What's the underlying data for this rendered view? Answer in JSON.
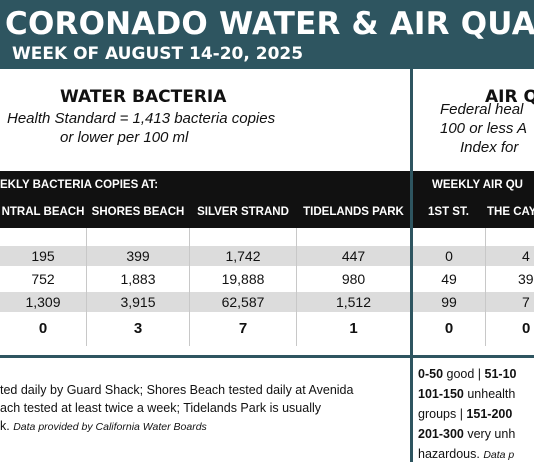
{
  "banner": {
    "title": "CORONADO WATER & AIR QUALITY R",
    "subtitle": "WEEK OF AUGUST 14-20, 2025"
  },
  "water": {
    "title": "WATER BACTERIA",
    "desc_line1": "Health Standard  = 1,413 bacteria copies",
    "desc_line2": "or lower per 100 ml",
    "bar_label": "EKLY BACTERIA COPIES AT:",
    "columns": [
      "NTRAL BEACH",
      "SHORES BEACH",
      "SILVER STRAND",
      "TIDELANDS PARK"
    ],
    "rows": [
      [
        "195",
        "399",
        "1,742",
        "447"
      ],
      [
        "752",
        "1,883",
        "19,888",
        "980"
      ],
      [
        "1,309",
        "3,915",
        "62,587",
        "1,512"
      ],
      [
        "0",
        "3",
        "7",
        "1"
      ]
    ],
    "footnote_line1": "ted daily by Guard Shack; Shores Beach tested daily at Avenida",
    "footnote_line2": "ach tested at least twice a week; Tidelands Park is usually",
    "footnote_line3_start": "k.",
    "footnote_line3_source": "Data provided by California Water Boards"
  },
  "air": {
    "title": "AIR Q",
    "desc_line1": "Federal heal",
    "desc_line2": "100 or less A",
    "desc_line3": "Index for",
    "bar_label": "WEEKLY AIR QU",
    "columns": [
      "1ST ST.",
      "THE CAY"
    ],
    "rows": [
      [
        "0",
        "4"
      ],
      [
        "49",
        "39"
      ],
      [
        "99",
        "7"
      ],
      [
        "0",
        "0"
      ]
    ],
    "scale": {
      "l1_a": "0-50",
      "l1_b": " good | ",
      "l1_c": "51-10",
      "l2_a": "101-150",
      "l2_b": " unhealth",
      "l3_a": "groups | ",
      "l3_b": "151-200",
      "l4_a": "201-300",
      "l4_b": " very unh",
      "l5_a": "hazardous. ",
      "l5_b": "Data p"
    }
  }
}
